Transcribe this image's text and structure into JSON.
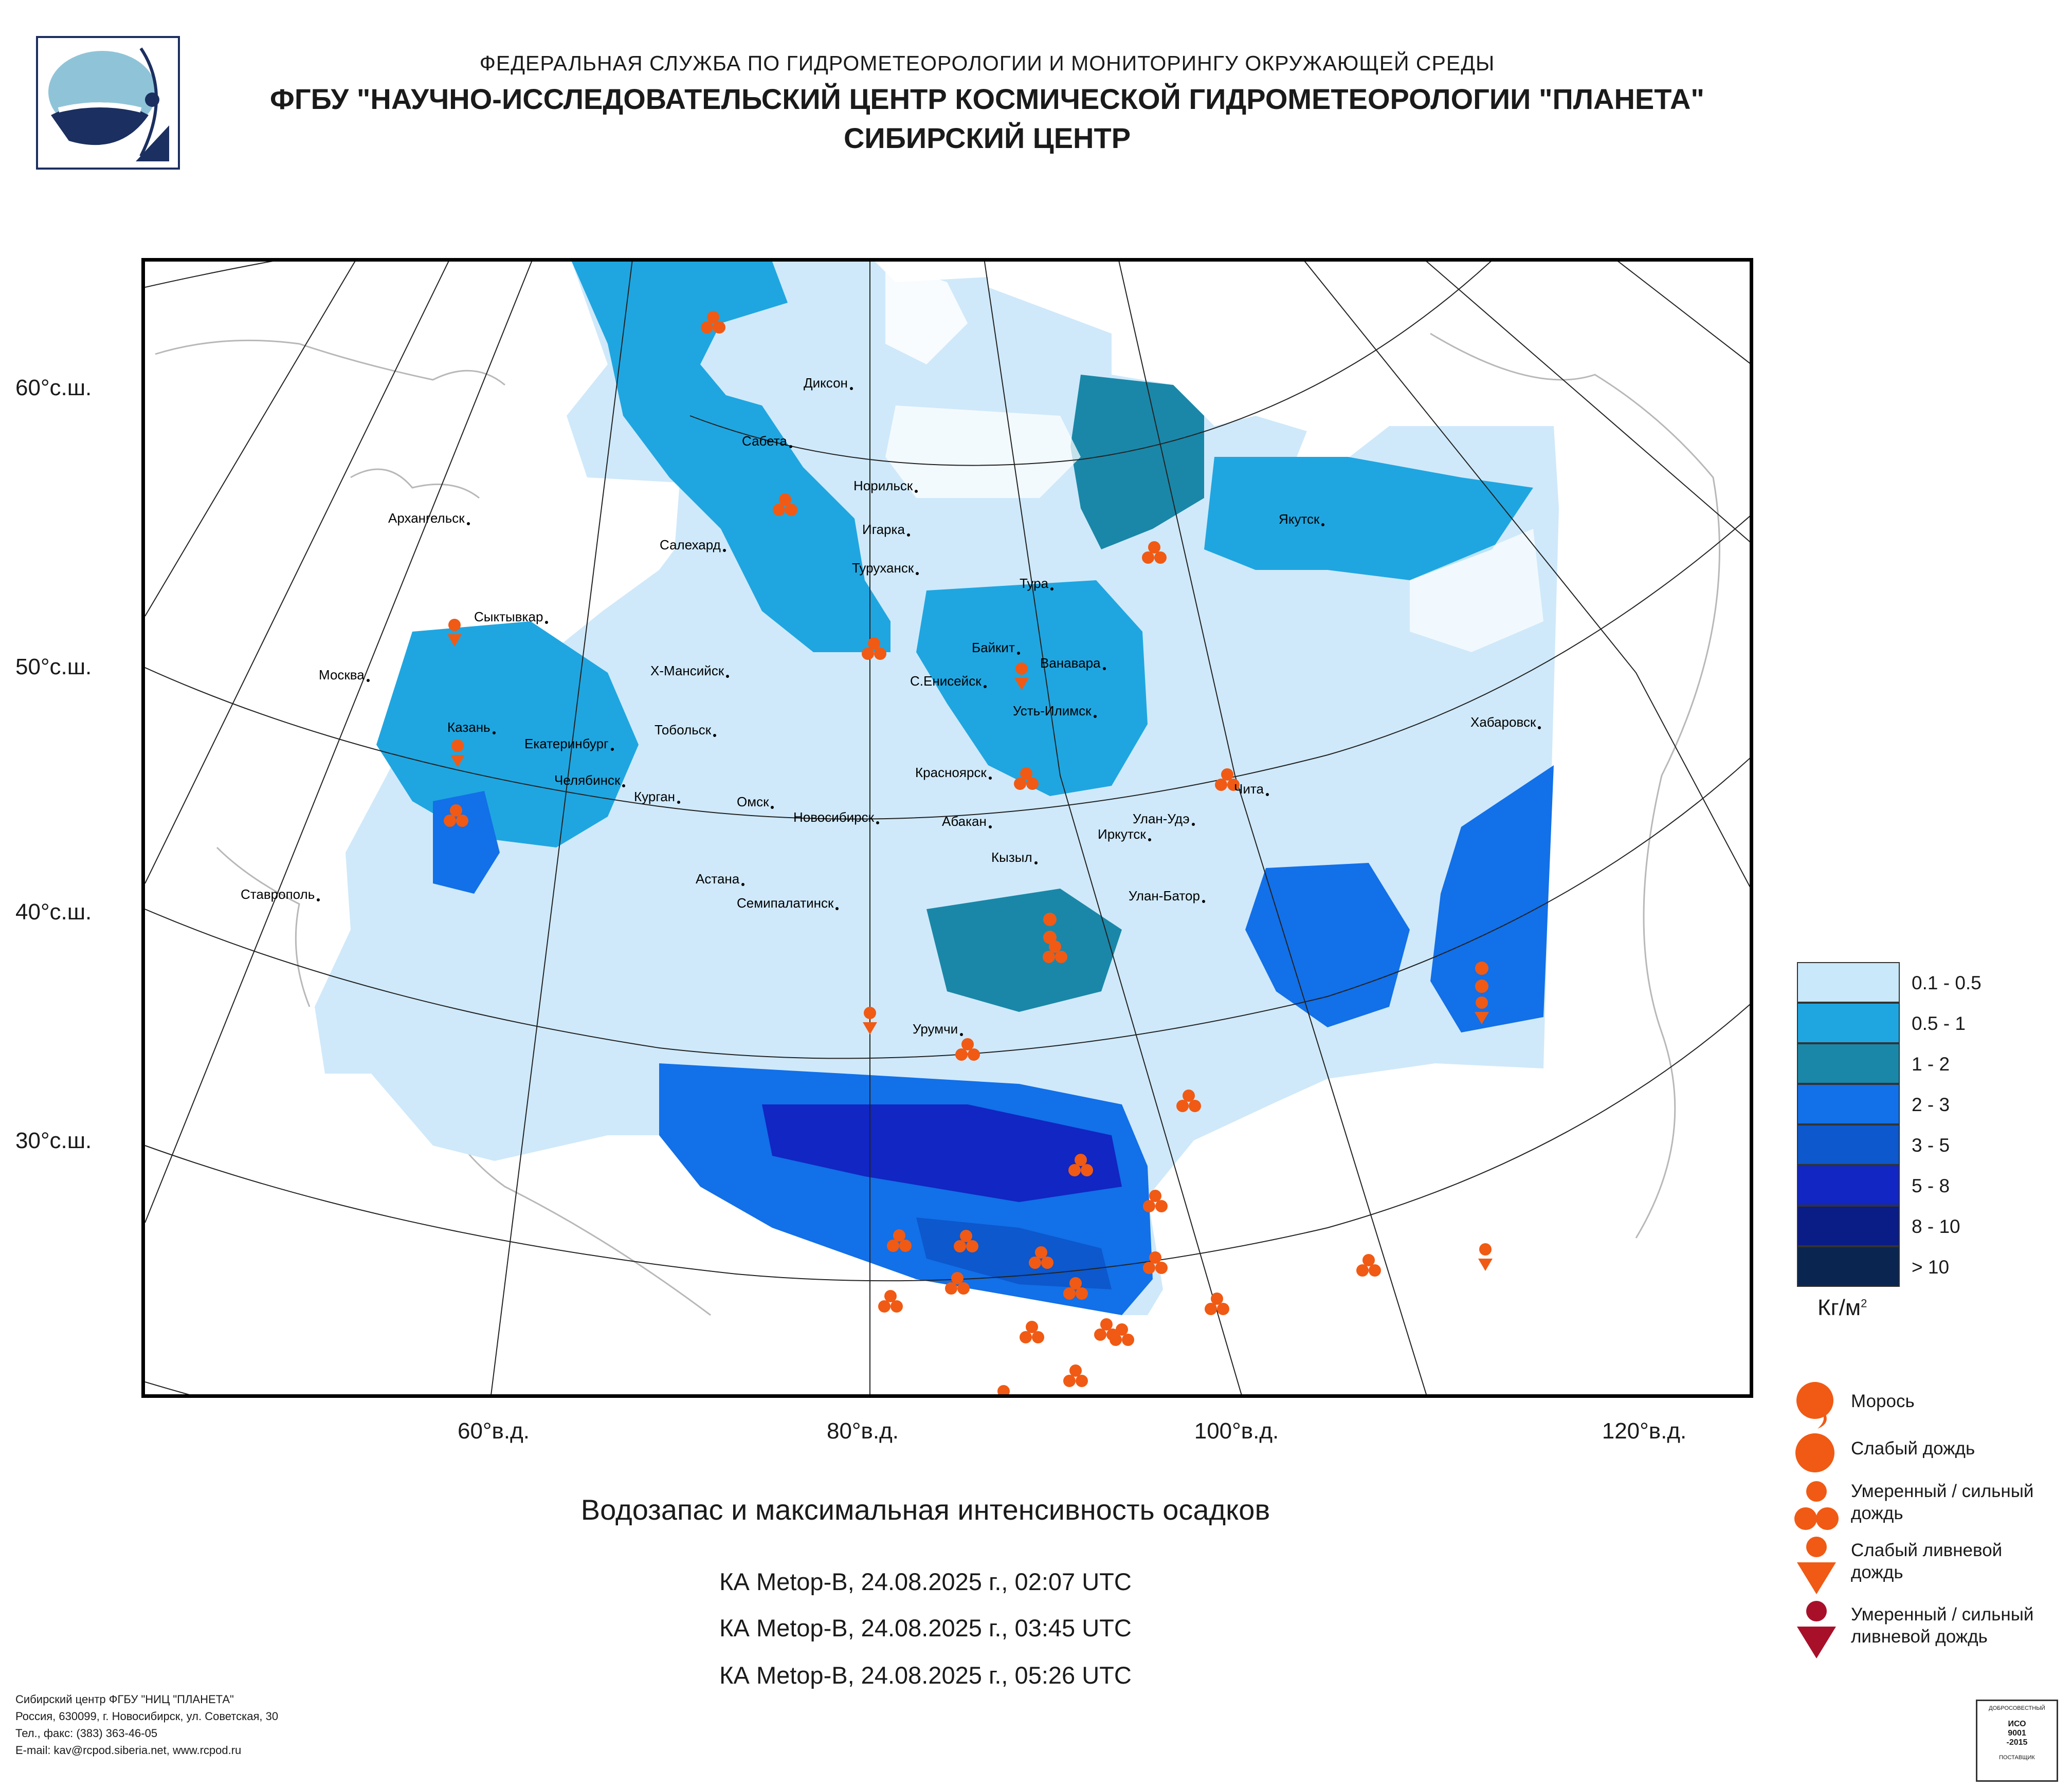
{
  "header": {
    "line1": "ФЕДЕРАЛЬНАЯ СЛУЖБА ПО ГИДРОМЕТЕОРОЛОГИИ И МОНИТОРИНГУ ОКРУЖАЮЩЕЙ СРЕДЫ",
    "line2": "ФГБУ \"НАУЧНО-ИССЛЕДОВАТЕЛЬСКИЙ ЦЕНТР КОСМИЧЕСКОЙ ГИДРОМЕТЕОРОЛОГИИ \"ПЛАНЕТА\"",
    "line3": "СИБИРСКИЙ ЦЕНТР"
  },
  "map": {
    "lat_labels": [
      "60°с.ш.",
      "50°с.ш.",
      "40°с.ш.",
      "30°с.ш."
    ],
    "lon_labels": [
      "60°в.д.",
      "80°в.д.",
      "100°в.д.",
      "120°в.д."
    ],
    "cities": [
      "Диксон",
      "Сабета",
      "Норильск",
      "Игарка",
      "Туруханск",
      "Архангельск",
      "Салехард",
      "Якутск",
      "Тура",
      "Сыктывкар",
      "Байкит",
      "Ванавара",
      "Москва",
      "Х-Мансийск",
      "С.Енисейск",
      "Усть-Илимск",
      "Хабаровск",
      "Казань",
      "Тобольск",
      "Екатеринбург",
      "Челябинск",
      "Курган",
      "Красноярск",
      "Чита",
      "Омск",
      "Новосибирск",
      "Абакан",
      "Улан-Удэ",
      "Иркутск",
      "Кызыл",
      "Астана",
      "Ставрополь",
      "Семипалатинск",
      "Улан-Батор",
      "Урумчи"
    ]
  },
  "legend": {
    "classes": [
      {
        "label": "0.1 - 0.5",
        "color": "#c9e8fa"
      },
      {
        "label": "0.5 - 1",
        "color": "#1fa6e0"
      },
      {
        "label": "1 - 2",
        "color": "#1a87a8"
      },
      {
        "label": "2 - 3",
        "color": "#1270e8"
      },
      {
        "label": "3 - 5",
        "color": "#0c58cc"
      },
      {
        "label": "5 - 8",
        "color": "#1126c2"
      },
      {
        "label": "8 - 10",
        "color": "#0a1c86"
      },
      {
        "label": "> 10",
        "color": "#0a2550"
      }
    ],
    "units": "Кг/м",
    "units_sup": "2",
    "precip_types": [
      {
        "label": "Морось",
        "icon": "drizzle-icon"
      },
      {
        "label": "Слабый дождь",
        "icon": "light-rain-icon"
      },
      {
        "label": "Умеренный / сильный дождь",
        "icon": "moderate-rain-icon"
      },
      {
        "label": "Слабый ливневой дождь",
        "icon": "light-shower-icon"
      },
      {
        "label": "Умеренный / сильный ливневой дождь",
        "icon": "heavy-shower-icon"
      }
    ],
    "marker_color": "#f05a14",
    "heavy_shower_color": "#a8102a"
  },
  "caption": "Водозапас и максимальная интенсивность осадков",
  "passes": [
    "КА Metop-B, 24.08.2025 г., 02:07 UTC",
    "КА Metop-B, 24.08.2025 г., 03:45 UTC",
    "КА Metop-B, 24.08.2025 г., 05:26 UTC"
  ],
  "footer": [
    "Сибирский центр ФГБУ \"НИЦ \"ПЛАНЕТА\"",
    "Россия, 630099, г. Новосибирск, ул. Советская, 30",
    "Тел., факс: (383) 363-46-05",
    "E-mail: kav@rcpod.siberia.net, www.rcpod.ru"
  ],
  "certificate": {
    "top": "ДОБРОСОВЕСТНЫЙ",
    "line1": "ИСО",
    "line2": "9001",
    "line3": "-2015",
    "bottom": "ПОСТАВЩИК"
  }
}
